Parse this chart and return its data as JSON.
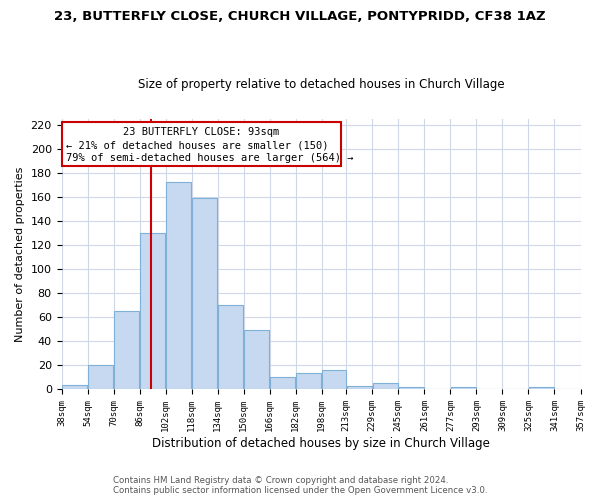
{
  "title": "23, BUTTERFLY CLOSE, CHURCH VILLAGE, PONTYPRIDD, CF38 1AZ",
  "subtitle": "Size of property relative to detached houses in Church Village",
  "xlabel": "Distribution of detached houses by size in Church Village",
  "ylabel": "Number of detached properties",
  "annotation_line1": "23 BUTTERFLY CLOSE: 93sqm",
  "annotation_line2": "← 21% of detached houses are smaller (150)",
  "annotation_line3": "79% of semi-detached houses are larger (564) →",
  "bin_edges": [
    38,
    54,
    70,
    86,
    102,
    118,
    134,
    150,
    166,
    182,
    198,
    213,
    229,
    245,
    261,
    277,
    293,
    309,
    325,
    341,
    357
  ],
  "bar_heights": [
    4,
    20,
    65,
    130,
    172,
    159,
    70,
    49,
    10,
    14,
    16,
    3,
    5,
    2,
    0,
    2,
    0,
    0,
    2,
    0
  ],
  "bar_color": "#c6d9f0",
  "bar_edge_color": "#7eb0d8",
  "vline_color": "#cc0000",
  "vline_x": 93,
  "annotation_box_color": "#cc0000",
  "ylim": [
    0,
    225
  ],
  "yticks": [
    0,
    20,
    40,
    60,
    80,
    100,
    120,
    140,
    160,
    180,
    200,
    220
  ],
  "footer_line1": "Contains HM Land Registry data © Crown copyright and database right 2024.",
  "footer_line2": "Contains public sector information licensed under the Open Government Licence v3.0.",
  "background_color": "#ffffff",
  "grid_color": "#d0d8e8"
}
